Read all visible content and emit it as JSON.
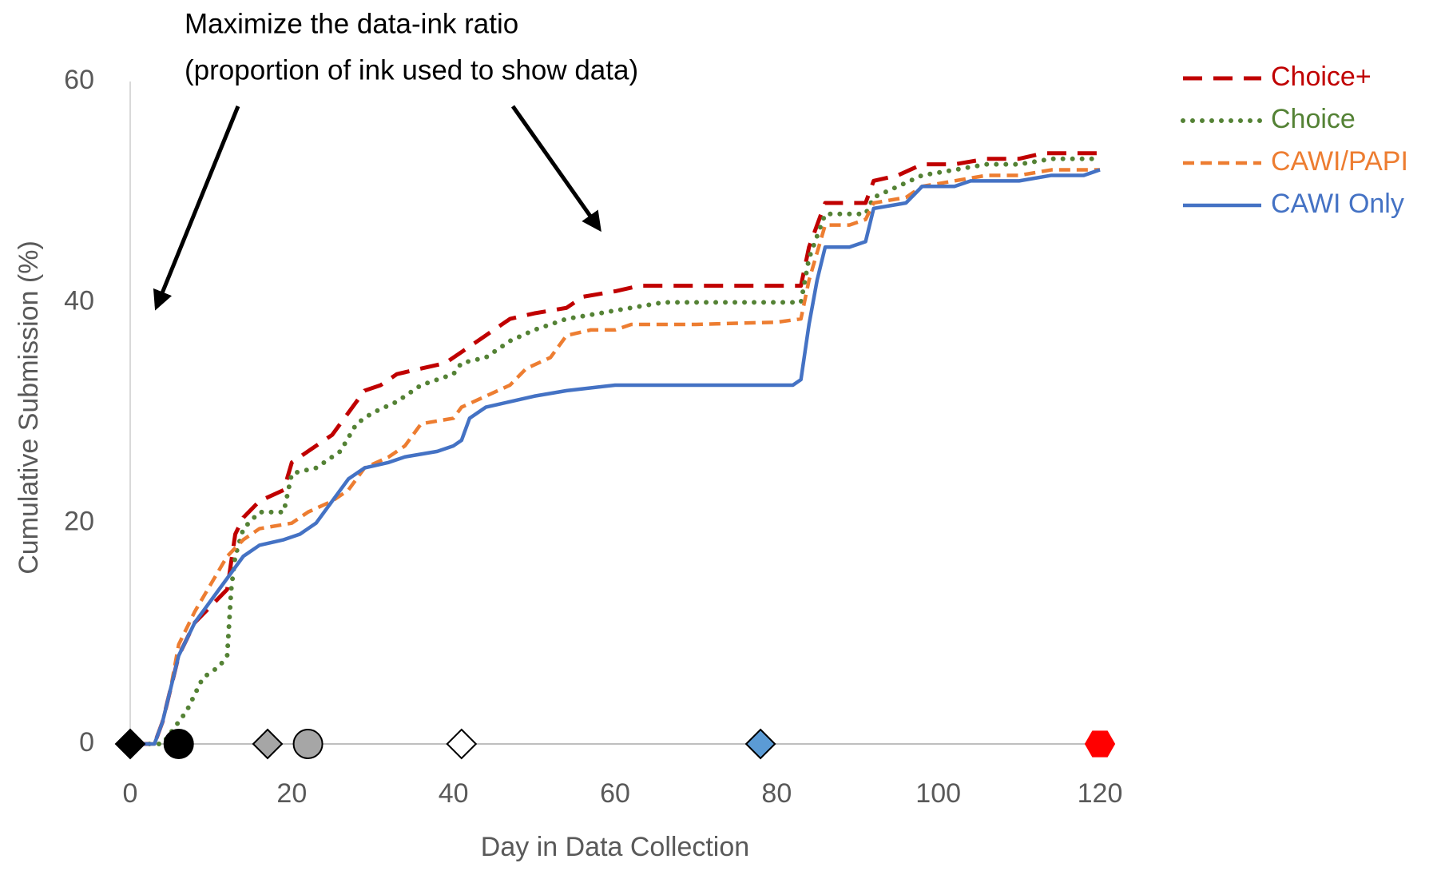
{
  "chart_data": {
    "type": "line",
    "annotation": [
      "Maximize the data-ink ratio",
      "(proportion of ink used to show data)"
    ],
    "xlabel": "Day in Data Collection",
    "ylabel": "Cumulative Submission  (%)",
    "xlim": [
      0,
      120
    ],
    "xticks": [
      0,
      20,
      40,
      60,
      80,
      100,
      120
    ],
    "ylim": [
      0,
      60
    ],
    "yticks": [
      0,
      20,
      40,
      60
    ],
    "grid": false,
    "legend": "upper right",
    "series": [
      {
        "name": "Choice+",
        "color": "#c00000",
        "style": "dashed",
        "x": [
          0,
          3,
          4,
          5,
          6,
          7,
          8,
          10,
          12,
          13,
          14,
          16,
          19,
          20,
          22,
          25,
          27,
          29,
          31,
          33,
          36,
          39,
          41,
          44,
          47,
          50,
          54,
          56,
          60,
          63,
          70,
          80,
          83,
          84,
          86,
          89,
          91,
          92,
          95,
          98,
          102,
          106,
          110,
          113,
          120
        ],
        "values": [
          0,
          0,
          2,
          5,
          8,
          9.5,
          11,
          12.5,
          14,
          19,
          20.5,
          22,
          23,
          25.5,
          26.5,
          28,
          30,
          32,
          32.5,
          33.5,
          34,
          34.5,
          35.5,
          37,
          38.5,
          39,
          39.5,
          40.5,
          41,
          41.5,
          41.5,
          41.5,
          41.5,
          45,
          49,
          49,
          49,
          51,
          51.5,
          52.5,
          52.5,
          53,
          53,
          53.5,
          53.5
        ]
      },
      {
        "name": "Choice",
        "color": "#548235",
        "style": "dotted",
        "x": [
          0,
          4,
          5,
          7,
          9,
          11,
          12,
          12.5,
          13,
          14,
          16,
          19,
          20,
          23,
          26,
          28,
          30,
          33,
          36,
          40,
          41,
          44,
          47,
          50,
          54,
          58,
          62,
          66,
          80,
          83,
          84,
          86,
          89,
          91,
          92,
          95,
          98,
          102,
          106,
          110,
          114,
          120
        ],
        "values": [
          0,
          0,
          1,
          3,
          6,
          7,
          8,
          14,
          17,
          19.5,
          21,
          21,
          24.5,
          25,
          26.5,
          29,
          30,
          31,
          32.5,
          33.5,
          34.5,
          35,
          36.5,
          37.5,
          38.5,
          39,
          39.5,
          40,
          40,
          40,
          44,
          48,
          48,
          48,
          49.5,
          50.5,
          51.5,
          52,
          52.5,
          52.5,
          53,
          53
        ]
      },
      {
        "name": "CAWI/PAPI",
        "color": "#ed7d31",
        "style": "short-dashed",
        "x": [
          0,
          3,
          4,
          5,
          6,
          8,
          10,
          12,
          14,
          16,
          20,
          22,
          25,
          27,
          29,
          32,
          34,
          36,
          40,
          41,
          44,
          47,
          49,
          52,
          54,
          57,
          60,
          62,
          70,
          80,
          83,
          84,
          86,
          89,
          91,
          92,
          96,
          98,
          102,
          106,
          110,
          114,
          120
        ],
        "values": [
          0,
          0,
          2,
          5,
          9,
          12,
          14.5,
          17,
          18.5,
          19.5,
          20,
          21,
          22,
          23,
          25,
          26,
          27,
          29,
          29.5,
          30.5,
          31.5,
          32.5,
          34,
          35,
          37,
          37.5,
          37.5,
          38,
          38,
          38.2,
          38.5,
          42,
          47,
          47,
          47.5,
          49,
          49.5,
          50.5,
          51,
          51.5,
          51.5,
          52,
          52
        ]
      },
      {
        "name": "CAWI Only",
        "color": "#4472c4",
        "style": "solid",
        "x": [
          0,
          3,
          4,
          5,
          6,
          8,
          10,
          12,
          14,
          16,
          19,
          21,
          23,
          25,
          27,
          29,
          32,
          34,
          38,
          40,
          41,
          42,
          44,
          47,
          50,
          54,
          60,
          80,
          82,
          83,
          84,
          85,
          86,
          89,
          91,
          92,
          96,
          98,
          102,
          104,
          110,
          114,
          118,
          120
        ],
        "values": [
          0,
          0,
          2,
          5,
          8,
          11,
          13,
          15,
          17,
          18,
          18.5,
          19,
          20,
          22,
          24,
          25,
          25.5,
          26,
          26.5,
          27,
          27.5,
          29.5,
          30.5,
          31,
          31.5,
          32,
          32.5,
          32.5,
          32.5,
          33,
          38,
          42,
          45,
          45,
          45.5,
          48.5,
          49,
          50.5,
          50.5,
          51,
          51,
          51.5,
          51.5,
          52
        ]
      }
    ],
    "markers": {
      "x": [
        0,
        6,
        17,
        22,
        41,
        78,
        120
      ],
      "values": [
        0,
        0,
        0,
        0,
        0,
        0,
        0
      ],
      "shapes": [
        "diamond",
        "circle",
        "diamond",
        "circle",
        "diamond",
        "diamond",
        "hexagon"
      ],
      "colors": [
        "#000000",
        "#000000",
        "#a6a6a6",
        "#a6a6a6",
        "#ffffff",
        "#5b9bd5",
        "#ff0000"
      ]
    }
  }
}
